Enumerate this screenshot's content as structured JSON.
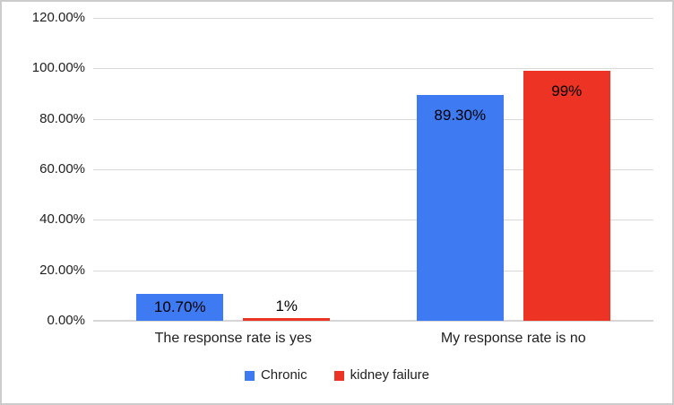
{
  "chart_data": {
    "type": "bar",
    "title": "",
    "categories": [
      "The response rate is yes",
      "My response rate is no"
    ],
    "series": [
      {
        "name": "Chronic",
        "color": "#3e7af1",
        "values": [
          10.7,
          89.3
        ],
        "labels": [
          "10.70%",
          "89.30%"
        ]
      },
      {
        "name": "kidney failure",
        "color": "#ec3324",
        "values": [
          1.0,
          99.0
        ],
        "labels": [
          "1%",
          "99%"
        ]
      }
    ],
    "ylim": [
      0,
      120
    ],
    "ytick_step": 20,
    "ytick_labels": [
      "0.00%",
      "20.00%",
      "40.00%",
      "60.00%",
      "80.00%",
      "100.00%",
      "120.00%"
    ],
    "grid": true,
    "legend_position": "bottom",
    "data_label_position": "inside-end",
    "colors": {
      "gridline": "#d9d9d9",
      "axis_text": "#1f1f1f",
      "background": "#ffffff",
      "frame_border": "#cccccc"
    }
  }
}
